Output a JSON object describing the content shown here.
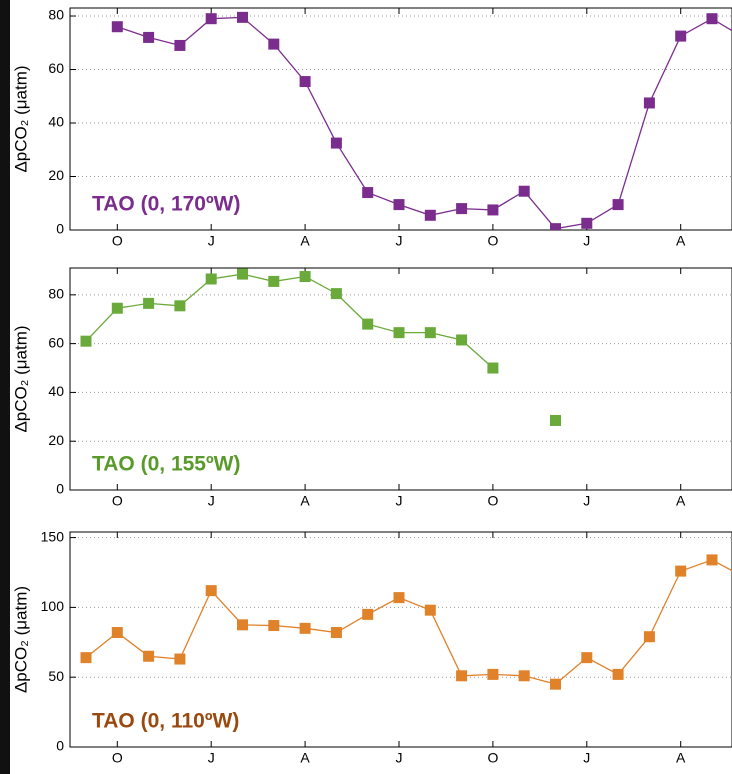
{
  "chart_data": [
    {
      "type": "line",
      "ylabel": "ΔpCO₂  (μatm)",
      "annotation": "TAO (0, 170ºW)",
      "categories": [
        null,
        "O",
        null,
        null,
        "J",
        null,
        null,
        "A",
        null,
        null,
        "J",
        null,
        null,
        "O",
        null,
        null,
        "J",
        null,
        null,
        "A",
        null,
        null
      ],
      "values": [
        null,
        76,
        72,
        69,
        79,
        79.5,
        69.5,
        55.5,
        32.5,
        14,
        9.5,
        5.5,
        8,
        7.5,
        14.5,
        0.5,
        2.5,
        9.5,
        47.5,
        72.5,
        79,
        72
      ],
      "color": "#7b2d8e",
      "ylim": [
        0,
        83
      ],
      "yticks": [
        0,
        20,
        40,
        60,
        80
      ],
      "grid": true
    },
    {
      "type": "line",
      "ylabel": "ΔpCO₂  (μatm)",
      "annotation": "TAO (0, 155ºW)",
      "categories": [
        null,
        "O",
        null,
        null,
        "J",
        null,
        null,
        "A",
        null,
        null,
        "J",
        null,
        null,
        "O",
        null,
        null,
        "J",
        null,
        null,
        "A",
        null,
        null
      ],
      "values": [
        61,
        74.5,
        76.5,
        75.5,
        86.5,
        88.5,
        85.5,
        87.5,
        80.5,
        68,
        64.5,
        64.5,
        61.5,
        50,
        null,
        28.5,
        null,
        null,
        null,
        null,
        null,
        null
      ],
      "color": "#6aaa3a",
      "ylim": [
        0,
        91
      ],
      "yticks": [
        0,
        20,
        40,
        60,
        80
      ],
      "grid": true
    },
    {
      "type": "line",
      "ylabel": "ΔpCO₂  (μatm)",
      "annotation": "TAO (0, 110ºW)",
      "categories": [
        null,
        "O",
        null,
        null,
        "J",
        null,
        null,
        "A",
        null,
        null,
        "J",
        null,
        null,
        "O",
        null,
        null,
        "J",
        null,
        null,
        "A",
        null,
        null
      ],
      "values": [
        64,
        82,
        65,
        63,
        112,
        87.5,
        87,
        85,
        82,
        95,
        107,
        98,
        51,
        52,
        51,
        45,
        64,
        52,
        79,
        126,
        134,
        122
      ],
      "color": "#e0822a",
      "ylim": [
        0,
        154
      ],
      "yticks": [
        0,
        50,
        100,
        150
      ],
      "grid": true
    }
  ]
}
